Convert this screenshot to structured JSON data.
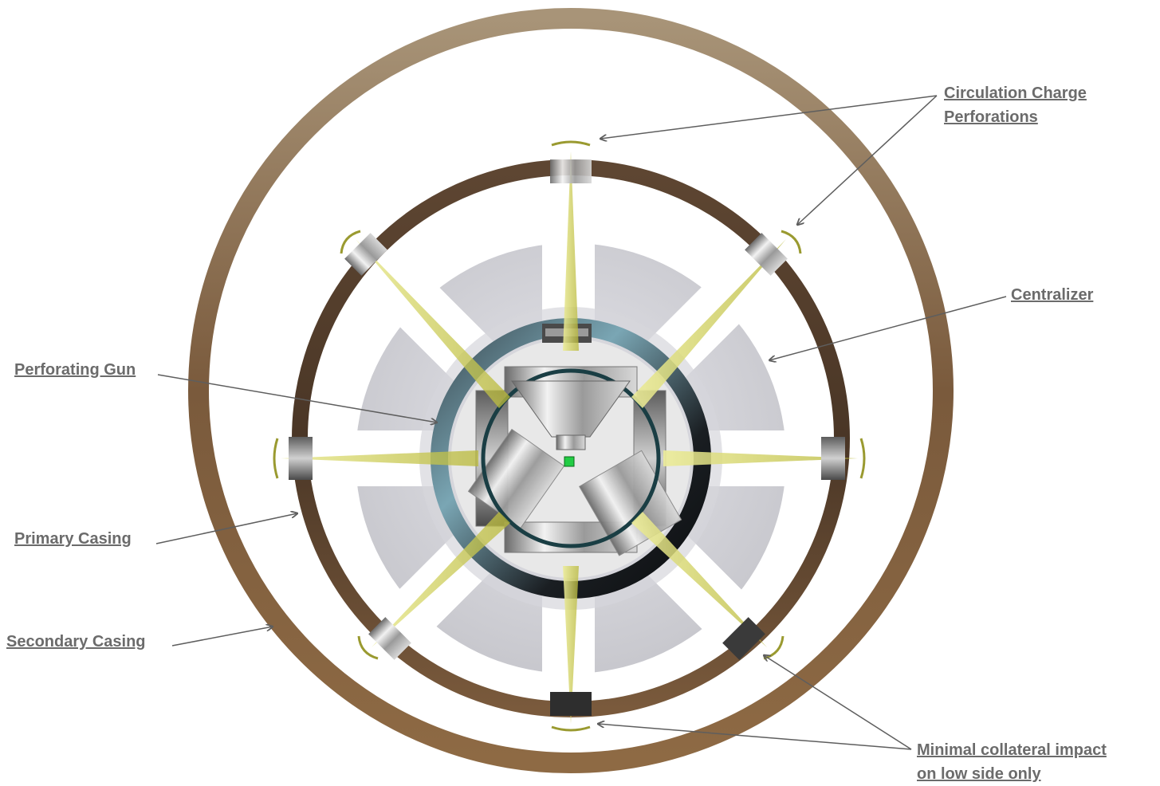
{
  "labels": {
    "circulation_line1": "Circulation Charge",
    "circulation_line2": "Perforations",
    "centralizer": "Centralizer",
    "perforating_gun": "Perforating Gun",
    "primary_casing": "Primary Casing",
    "secondary_casing": "Secondary Casing",
    "minimal_line1": "Minimal collateral impact",
    "minimal_line2": "on low side only"
  },
  "colors": {
    "secondary_casing": "#8a6a48",
    "primary_casing": "#6e5238",
    "centralizer": "#c9c9cf",
    "jet": "#cfcf5a",
    "label_text": "#6b6b6b",
    "arrow": "#5e5e5e",
    "indicator": "#22cc44"
  },
  "icons": {
    "arrow": "arrowhead-icon"
  }
}
